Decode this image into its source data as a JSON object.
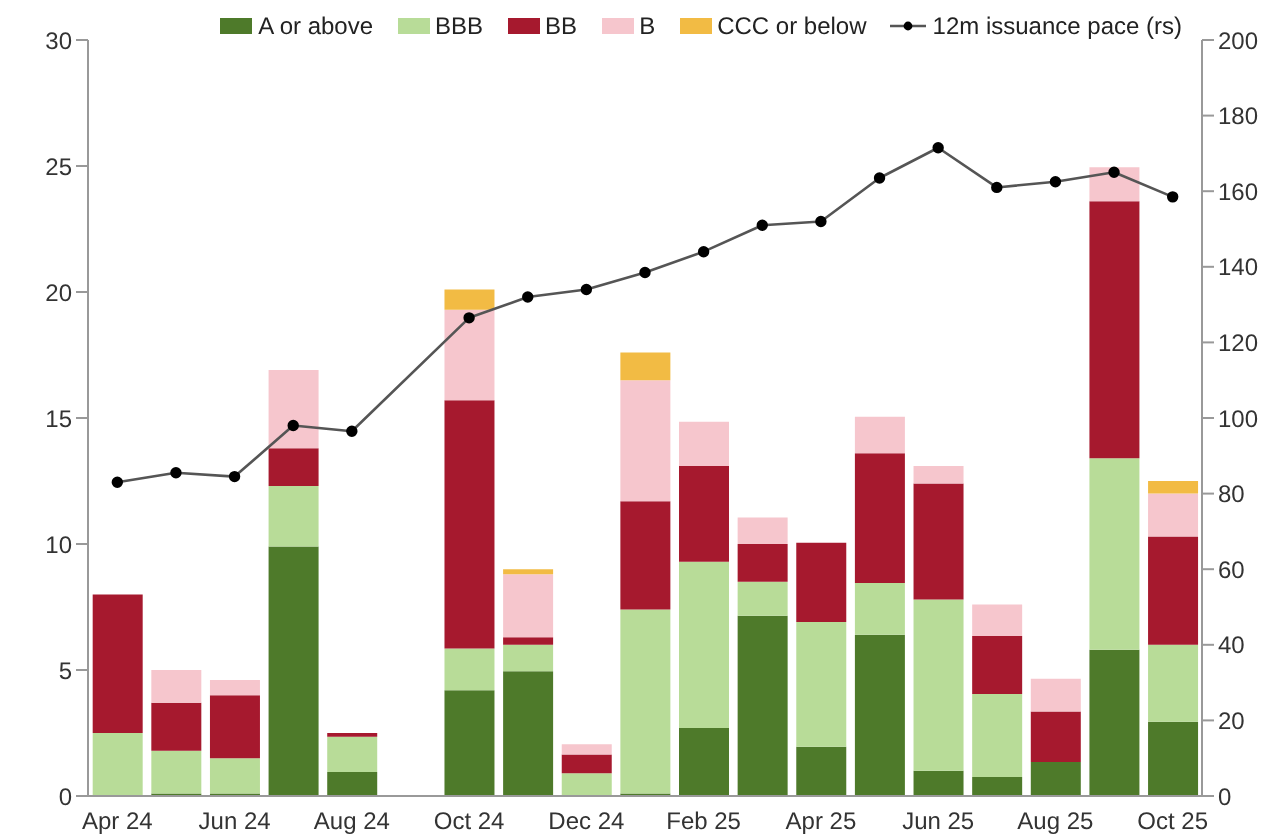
{
  "chart_data": {
    "type": "bar",
    "stacked": true,
    "categories": [
      "Apr 24",
      null,
      "Jun 24",
      null,
      "Aug 24",
      null,
      "Oct 24",
      null,
      "Dec 24",
      null,
      "Feb 25",
      null,
      "Apr 25",
      null,
      "Jun 25",
      null,
      "Aug 25",
      null,
      "Oct 25"
    ],
    "series": [
      {
        "name": "A or above",
        "color": "#4e7a2a",
        "values": [
          0,
          0.1,
          0.1,
          9.9,
          0.95,
          null,
          4.2,
          4.95,
          0,
          0.1,
          2.7,
          7.15,
          1.95,
          6.4,
          1.0,
          0.75,
          1.35,
          5.8,
          2.95
        ]
      },
      {
        "name": "BBB",
        "color": "#b8dc98",
        "values": [
          2.5,
          1.7,
          1.4,
          2.4,
          1.4,
          null,
          1.65,
          1.05,
          0.9,
          7.3,
          6.6,
          1.35,
          4.95,
          2.05,
          6.8,
          3.3,
          0,
          7.6,
          3.05
        ]
      },
      {
        "name": "BB",
        "color": "#a6192e",
        "values": [
          5.5,
          1.9,
          2.5,
          1.5,
          0.15,
          null,
          9.85,
          0.3,
          0.75,
          4.3,
          3.8,
          1.5,
          3.15,
          5.15,
          4.6,
          2.3,
          2.0,
          10.2,
          4.3
        ]
      },
      {
        "name": "B",
        "color": "#f6c6cd",
        "values": [
          0,
          1.3,
          0.6,
          3.1,
          0,
          null,
          3.6,
          2.5,
          0.4,
          4.8,
          1.75,
          1.05,
          0,
          1.45,
          0.7,
          1.25,
          1.3,
          1.35,
          1.7
        ]
      },
      {
        "name": "CCC or below",
        "color": "#f2bb44",
        "values": [
          0,
          0,
          0,
          0,
          0,
          null,
          0.8,
          0.2,
          0,
          1.1,
          0,
          0,
          0,
          0,
          0,
          0,
          0,
          0,
          0.5
        ]
      },
      {
        "name": "12m issuance pace (rs)",
        "type": "line",
        "axis": "y2",
        "color": "#555555",
        "marker": "circle",
        "values": [
          83,
          85.5,
          84.5,
          98,
          96.5,
          null,
          126.5,
          132,
          134,
          138.5,
          144,
          151,
          152,
          163.5,
          171.5,
          161,
          162.5,
          165,
          158.5
        ]
      }
    ],
    "ylim": [
      0,
      30
    ],
    "yticks": [
      0,
      5,
      10,
      15,
      20,
      25,
      30
    ],
    "y2lim": [
      0,
      200
    ],
    "y2ticks": [
      0,
      20,
      40,
      60,
      80,
      100,
      120,
      140,
      160,
      180,
      200
    ],
    "legend": "top right",
    "grid": false
  }
}
